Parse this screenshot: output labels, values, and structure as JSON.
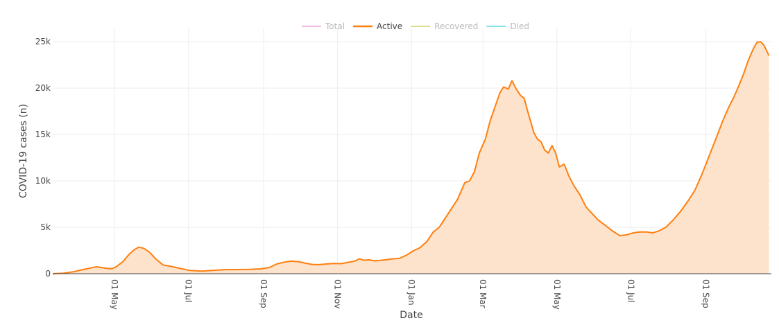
{
  "chart_data": {
    "type": "area",
    "xlabel": "Date",
    "ylabel": "COVID-19 cases (n)",
    "xlim": [
      "2020-03-11",
      "2021-10-25"
    ],
    "ylim": [
      0,
      26500
    ],
    "x_ticks": [
      {
        "date": "2020-05-01",
        "label": "01 May"
      },
      {
        "date": "2020-07-01",
        "label": "01 Jul"
      },
      {
        "date": "2020-09-01",
        "label": "01 Sep"
      },
      {
        "date": "2020-11-01",
        "label": "01 Nov"
      },
      {
        "date": "2021-01-01",
        "label": "01 Jan"
      },
      {
        "date": "2021-03-01",
        "label": "01 Mar"
      },
      {
        "date": "2021-05-01",
        "label": "01 May"
      },
      {
        "date": "2021-07-01",
        "label": "01 Jul"
      },
      {
        "date": "2021-09-01",
        "label": "01 Sep"
      }
    ],
    "y_ticks": [
      {
        "value": 0,
        "label": "0"
      },
      {
        "value": 5000,
        "label": "5k"
      },
      {
        "value": 10000,
        "label": "10k"
      },
      {
        "value": 15000,
        "label": "15k"
      },
      {
        "value": 20000,
        "label": "20k"
      },
      {
        "value": 25000,
        "label": "25k"
      }
    ],
    "grid": true,
    "legend_position": "top-center",
    "legend": [
      {
        "label": "Total",
        "color": "#e377c2",
        "active": false
      },
      {
        "label": "Active",
        "color": "#ff7f0e",
        "active": true
      },
      {
        "label": "Recovered",
        "color": "#bcbd22",
        "active": false
      },
      {
        "label": "Died",
        "color": "#17becf",
        "active": false
      }
    ],
    "series": [
      {
        "name": "Active",
        "color": "#ff7f0e",
        "fill": "#fde3cb",
        "points": [
          [
            "2020-03-11",
            0
          ],
          [
            "2020-03-20",
            60
          ],
          [
            "2020-03-28",
            200
          ],
          [
            "2020-04-04",
            420
          ],
          [
            "2020-04-10",
            580
          ],
          [
            "2020-04-16",
            750
          ],
          [
            "2020-04-21",
            650
          ],
          [
            "2020-04-25",
            560
          ],
          [
            "2020-04-29",
            560
          ],
          [
            "2020-05-02",
            720
          ],
          [
            "2020-05-08",
            1300
          ],
          [
            "2020-05-13",
            2100
          ],
          [
            "2020-05-17",
            2550
          ],
          [
            "2020-05-21",
            2850
          ],
          [
            "2020-05-25",
            2750
          ],
          [
            "2020-05-30",
            2300
          ],
          [
            "2020-06-04",
            1600
          ],
          [
            "2020-06-10",
            950
          ],
          [
            "2020-06-17",
            780
          ],
          [
            "2020-06-25",
            550
          ],
          [
            "2020-07-02",
            350
          ],
          [
            "2020-07-12",
            280
          ],
          [
            "2020-07-21",
            350
          ],
          [
            "2020-07-31",
            440
          ],
          [
            "2020-08-10",
            450
          ],
          [
            "2020-08-20",
            470
          ],
          [
            "2020-08-30",
            520
          ],
          [
            "2020-09-06",
            680
          ],
          [
            "2020-09-12",
            1050
          ],
          [
            "2020-09-18",
            1250
          ],
          [
            "2020-09-24",
            1350
          ],
          [
            "2020-09-30",
            1300
          ],
          [
            "2020-10-05",
            1150
          ],
          [
            "2020-10-11",
            1000
          ],
          [
            "2020-10-17",
            980
          ],
          [
            "2020-10-23",
            1050
          ],
          [
            "2020-10-29",
            1100
          ],
          [
            "2020-11-04",
            1080
          ],
          [
            "2020-11-09",
            1200
          ],
          [
            "2020-11-15",
            1350
          ],
          [
            "2020-11-19",
            1600
          ],
          [
            "2020-11-23",
            1450
          ],
          [
            "2020-11-27",
            1500
          ],
          [
            "2020-12-02",
            1380
          ],
          [
            "2020-12-07",
            1450
          ],
          [
            "2020-12-11",
            1500
          ],
          [
            "2020-12-16",
            1600
          ],
          [
            "2020-12-22",
            1650
          ],
          [
            "2020-12-28",
            2000
          ],
          [
            "2021-01-03",
            2500
          ],
          [
            "2021-01-08",
            2800
          ],
          [
            "2021-01-14",
            3500
          ],
          [
            "2021-01-19",
            4500
          ],
          [
            "2021-01-24",
            5000
          ],
          [
            "2021-01-29",
            6000
          ],
          [
            "2021-02-03",
            7000
          ],
          [
            "2021-02-08",
            8000
          ],
          [
            "2021-02-14",
            9800
          ],
          [
            "2021-02-18",
            10000
          ],
          [
            "2021-02-22",
            11000
          ],
          [
            "2021-02-26",
            13000
          ],
          [
            "2021-03-03",
            14500
          ],
          [
            "2021-03-07",
            16500
          ],
          [
            "2021-03-11",
            18000
          ],
          [
            "2021-03-15",
            19500
          ],
          [
            "2021-03-18",
            20100
          ],
          [
            "2021-03-22",
            19900
          ],
          [
            "2021-03-25",
            20800
          ],
          [
            "2021-03-28",
            20000
          ],
          [
            "2021-04-01",
            19200
          ],
          [
            "2021-04-04",
            18900
          ],
          [
            "2021-04-08",
            17000
          ],
          [
            "2021-04-12",
            15200
          ],
          [
            "2021-04-15",
            14500
          ],
          [
            "2021-04-18",
            14200
          ],
          [
            "2021-04-21",
            13300
          ],
          [
            "2021-04-24",
            13000
          ],
          [
            "2021-04-27",
            13800
          ],
          [
            "2021-04-30",
            13000
          ],
          [
            "2021-05-03",
            11500
          ],
          [
            "2021-05-07",
            11800
          ],
          [
            "2021-05-11",
            10500
          ],
          [
            "2021-05-15",
            9500
          ],
          [
            "2021-05-20",
            8500
          ],
          [
            "2021-05-25",
            7200
          ],
          [
            "2021-05-30",
            6500
          ],
          [
            "2021-06-04",
            5800
          ],
          [
            "2021-06-10",
            5200
          ],
          [
            "2021-06-16",
            4600
          ],
          [
            "2021-06-22",
            4100
          ],
          [
            "2021-06-28",
            4200
          ],
          [
            "2021-07-03",
            4400
          ],
          [
            "2021-07-08",
            4500
          ],
          [
            "2021-07-14",
            4500
          ],
          [
            "2021-07-19",
            4400
          ],
          [
            "2021-07-24",
            4600
          ],
          [
            "2021-07-30",
            5000
          ],
          [
            "2021-08-05",
            5800
          ],
          [
            "2021-08-11",
            6700
          ],
          [
            "2021-08-17",
            7800
          ],
          [
            "2021-08-23",
            9000
          ],
          [
            "2021-08-29",
            10800
          ],
          [
            "2021-09-04",
            12800
          ],
          [
            "2021-09-10",
            14800
          ],
          [
            "2021-09-15",
            16500
          ],
          [
            "2021-09-20",
            18000
          ],
          [
            "2021-09-24",
            19000
          ],
          [
            "2021-09-28",
            20200
          ],
          [
            "2021-10-02",
            21500
          ],
          [
            "2021-10-06",
            23000
          ],
          [
            "2021-10-10",
            24200
          ],
          [
            "2021-10-13",
            24900
          ],
          [
            "2021-10-16",
            25000
          ],
          [
            "2021-10-19",
            24600
          ],
          [
            "2021-10-23",
            23500
          ]
        ]
      }
    ]
  }
}
